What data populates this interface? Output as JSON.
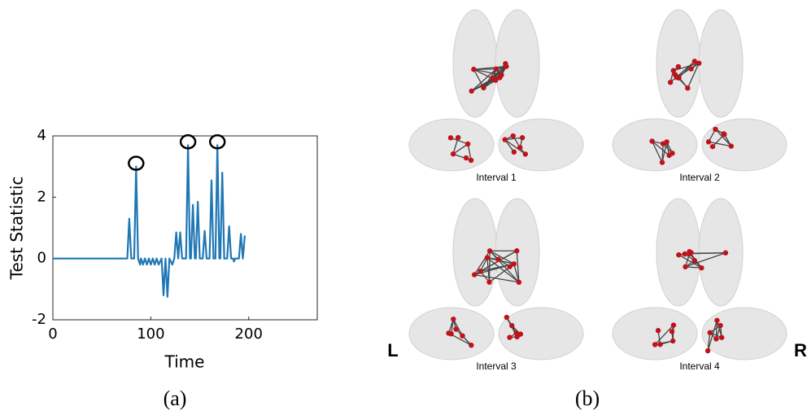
{
  "chart_data": {
    "type": "line",
    "xlabel": "Time",
    "ylabel": "Test Statistic",
    "color": "#1f77b4",
    "x": [
      0,
      76,
      78,
      80,
      83,
      85,
      87,
      89,
      90,
      92,
      94,
      96,
      98,
      100,
      102,
      104,
      106,
      108,
      111,
      113,
      115,
      117,
      119,
      122,
      124,
      126,
      128,
      130,
      132,
      136,
      138,
      140,
      141,
      143,
      145,
      146,
      148,
      150,
      153,
      155,
      157,
      160,
      162,
      164,
      166,
      168,
      170,
      171,
      173,
      175,
      178,
      180,
      182,
      184,
      185,
      186,
      190,
      192,
      194,
      196
    ],
    "values": [
      0,
      0,
      1.3,
      0,
      0,
      3.0,
      0,
      -0.2,
      0,
      -0.2,
      0,
      -0.2,
      0,
      -0.2,
      0,
      -0.2,
      0,
      -0.2,
      0,
      -1.2,
      0,
      -1.25,
      0,
      -0.2,
      0,
      0.85,
      0,
      0.85,
      0,
      0,
      3.7,
      0,
      0,
      1.75,
      0,
      0,
      1.85,
      0,
      0,
      0.9,
      0,
      0,
      2.55,
      0,
      0,
      3.7,
      0,
      0,
      2.8,
      0,
      0,
      1.05,
      0,
      0,
      -0.1,
      0,
      0,
      0.8,
      0,
      0.75
    ],
    "circles": {
      "x": [
        85,
        138,
        168
      ],
      "values": [
        3.0,
        3.7,
        3.7
      ]
    },
    "xlim": [
      0,
      270
    ],
    "ylim": [
      -2,
      4
    ],
    "xticks": [
      0,
      100,
      200
    ],
    "yticks": [
      -2,
      0,
      2,
      4
    ],
    "grid": false
  },
  "panel_b": {
    "intervals": [
      "Interval 1",
      "Interval 2",
      "Interval 3",
      "Interval 4"
    ],
    "left_label": "L",
    "right_label": "R"
  },
  "captions": [
    "(a)",
    "(b)"
  ]
}
